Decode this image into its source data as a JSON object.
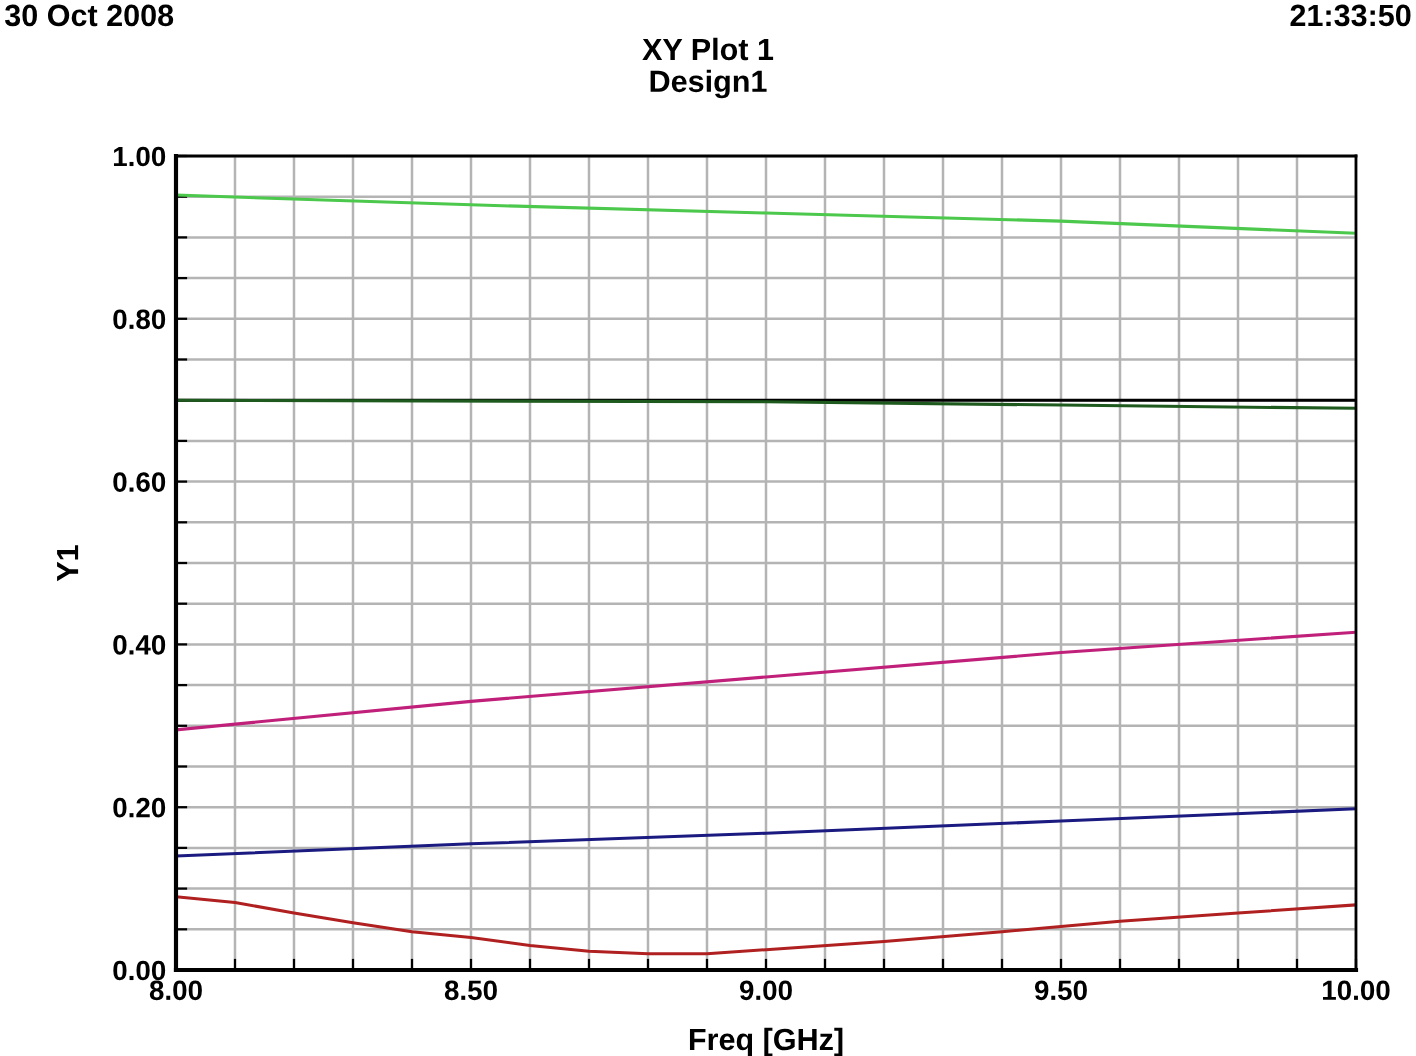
{
  "chart_data": {
    "type": "line",
    "title": "XY Plot 1",
    "subtitle": "Design1",
    "xlabel": "Freq [GHz]",
    "ylabel": "Y1",
    "annotations": [
      "30 Oct 2008",
      "21:33:50"
    ],
    "xlim": [
      8.0,
      10.0
    ],
    "xticks": [
      {
        "value": 8.0,
        "label": "8.00"
      },
      {
        "value": 8.1,
        "label": null
      },
      {
        "value": 8.2,
        "label": null
      },
      {
        "value": 8.3,
        "label": null
      },
      {
        "value": 8.4,
        "label": null
      },
      {
        "value": 8.5,
        "label": "8.50"
      },
      {
        "value": 8.6,
        "label": null
      },
      {
        "value": 8.7,
        "label": null
      },
      {
        "value": 8.8,
        "label": null
      },
      {
        "value": 8.9,
        "label": null
      },
      {
        "value": 9.0,
        "label": "9.00"
      },
      {
        "value": 9.1,
        "label": null
      },
      {
        "value": 9.2,
        "label": null
      },
      {
        "value": 9.3,
        "label": null
      },
      {
        "value": 9.4,
        "label": null
      },
      {
        "value": 9.5,
        "label": "9.50"
      },
      {
        "value": 9.6,
        "label": null
      },
      {
        "value": 9.7,
        "label": null
      },
      {
        "value": 9.8,
        "label": null
      },
      {
        "value": 9.9,
        "label": null
      },
      {
        "value": 10.0,
        "label": "10.00"
      }
    ],
    "ylim": [
      0.0,
      1.0
    ],
    "yticks": [
      {
        "value": 0.0,
        "label": "0.00"
      },
      {
        "value": 0.05,
        "label": null
      },
      {
        "value": 0.1,
        "label": null
      },
      {
        "value": 0.15,
        "label": null
      },
      {
        "value": 0.2,
        "label": "0.20"
      },
      {
        "value": 0.25,
        "label": null
      },
      {
        "value": 0.3,
        "label": null
      },
      {
        "value": 0.35,
        "label": null
      },
      {
        "value": 0.4,
        "label": "0.40"
      },
      {
        "value": 0.45,
        "label": null
      },
      {
        "value": 0.5,
        "label": null
      },
      {
        "value": 0.55,
        "label": null
      },
      {
        "value": 0.6,
        "label": "0.60"
      },
      {
        "value": 0.65,
        "label": null
      },
      {
        "value": 0.7,
        "label": null
      },
      {
        "value": 0.75,
        "label": null
      },
      {
        "value": 0.8,
        "label": "0.80"
      },
      {
        "value": 0.85,
        "label": null
      },
      {
        "value": 0.9,
        "label": null
      },
      {
        "value": 0.95,
        "label": null
      },
      {
        "value": 1.0,
        "label": "1.00"
      }
    ],
    "grid": true,
    "marker": "none",
    "line_style": "solid",
    "series": [
      {
        "color": "#4cc84c",
        "x": [
          8.0,
          8.5,
          9.0,
          9.5,
          10.0
        ],
        "values": [
          0.952,
          0.94,
          0.93,
          0.92,
          0.905
        ]
      },
      {
        "color": "#000000",
        "x": [
          8.0,
          9.0,
          10.0
        ],
        "values": [
          0.7,
          0.7,
          0.7
        ]
      },
      {
        "color": "#1e5a1e",
        "x": [
          8.0,
          9.0,
          9.5,
          10.0
        ],
        "values": [
          0.7,
          0.698,
          0.694,
          0.69
        ]
      },
      {
        "color": "#c0207a",
        "x": [
          8.0,
          8.5,
          9.0,
          9.5,
          10.0
        ],
        "values": [
          0.295,
          0.33,
          0.36,
          0.39,
          0.415
        ]
      },
      {
        "color": "#1a1a80",
        "x": [
          8.0,
          8.5,
          9.0,
          9.5,
          10.0
        ],
        "values": [
          0.14,
          0.155,
          0.168,
          0.183,
          0.198
        ]
      },
      {
        "color": "#b02020",
        "x": [
          8.0,
          8.1,
          8.2,
          8.3,
          8.4,
          8.5,
          8.6,
          8.7,
          8.8,
          8.9,
          9.0,
          9.2,
          9.4,
          9.6,
          9.8,
          10.0
        ],
        "values": [
          0.09,
          0.083,
          0.07,
          0.058,
          0.047,
          0.04,
          0.03,
          0.023,
          0.02,
          0.02,
          0.025,
          0.035,
          0.047,
          0.06,
          0.07,
          0.08
        ]
      }
    ]
  }
}
